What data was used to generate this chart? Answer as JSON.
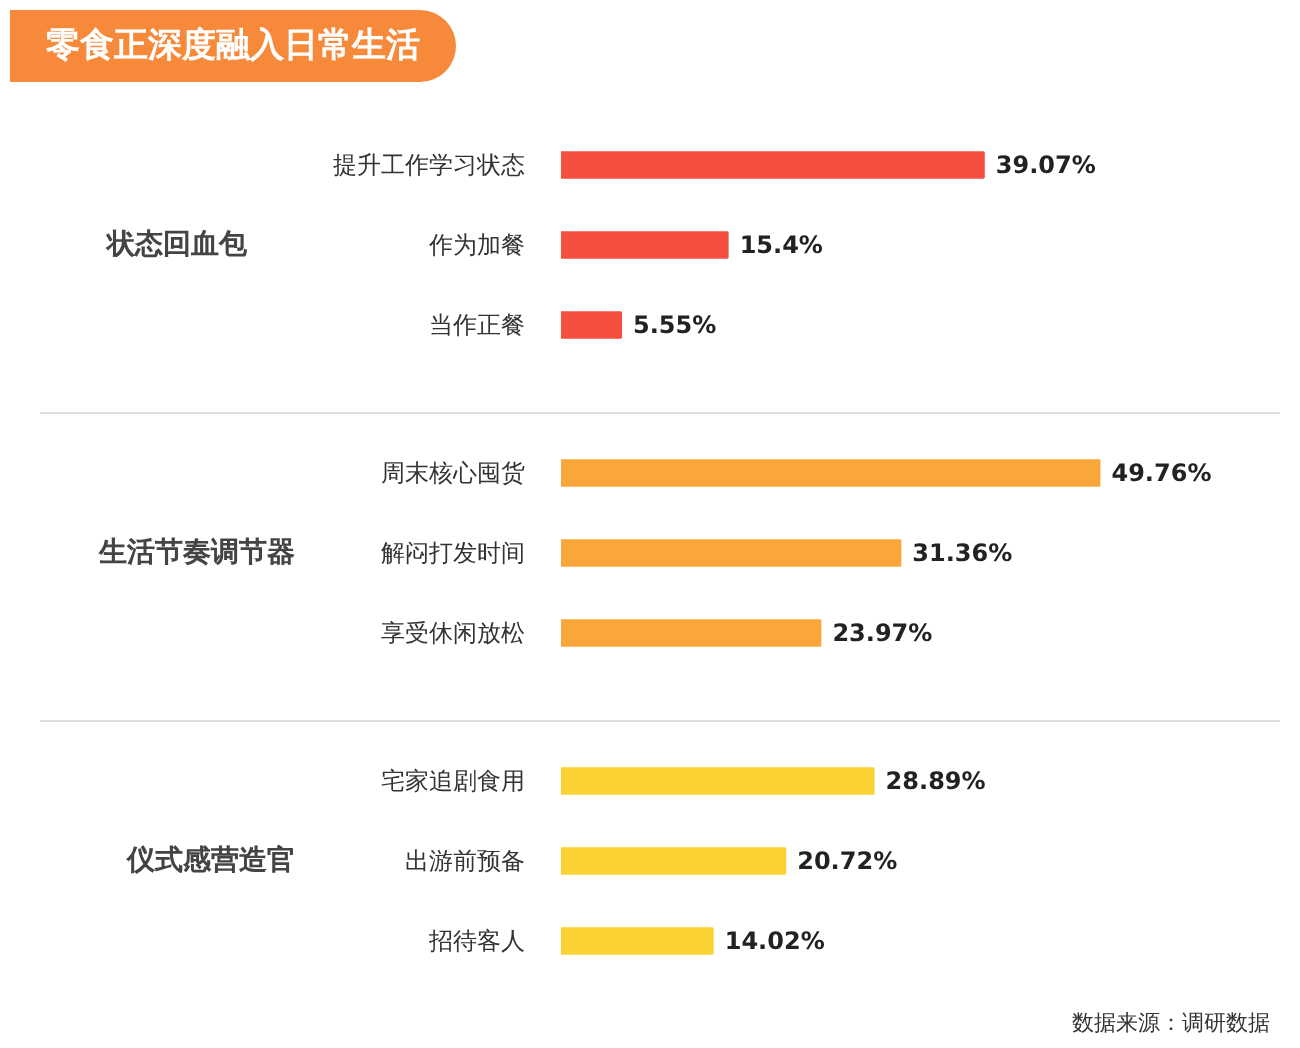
{
  "chart_data": [
    {
      "type": "bar",
      "orientation": "horizontal",
      "title": "零食正深度融入日常生活",
      "ylabel": "状态回血包",
      "categories": [
        "提升工作学习状态",
        "作为加餐",
        "当作正餐"
      ],
      "values": [
        39.07,
        15.4,
        5.55
      ],
      "value_labels": [
        "39.07%",
        "15.4%",
        "5.55%"
      ],
      "color": "#f5503f",
      "tick_labels": "y"
    },
    {
      "type": "bar",
      "orientation": "horizontal",
      "ylabel": "生活节奏调节器",
      "categories": [
        "周末核心囤货",
        "解闷打发时间",
        "享受休闲放松"
      ],
      "values": [
        49.76,
        31.36,
        23.97
      ],
      "value_labels": [
        "49.76%",
        "31.36%",
        "23.97%"
      ],
      "color": "#f9a63a",
      "tick_labels": "y"
    },
    {
      "type": "bar",
      "orientation": "horizontal",
      "ylabel": "仪式感营造官",
      "categories": [
        "宅家追剧食用",
        "出游前预备",
        "招待客人"
      ],
      "values": [
        28.89,
        20.72,
        14.02
      ],
      "value_labels": [
        "28.89%",
        "20.72%",
        "14.02%"
      ],
      "color": "#fad232",
      "tick_labels": "y",
      "annotations": [
        "数据来源：调研数据"
      ]
    }
  ]
}
